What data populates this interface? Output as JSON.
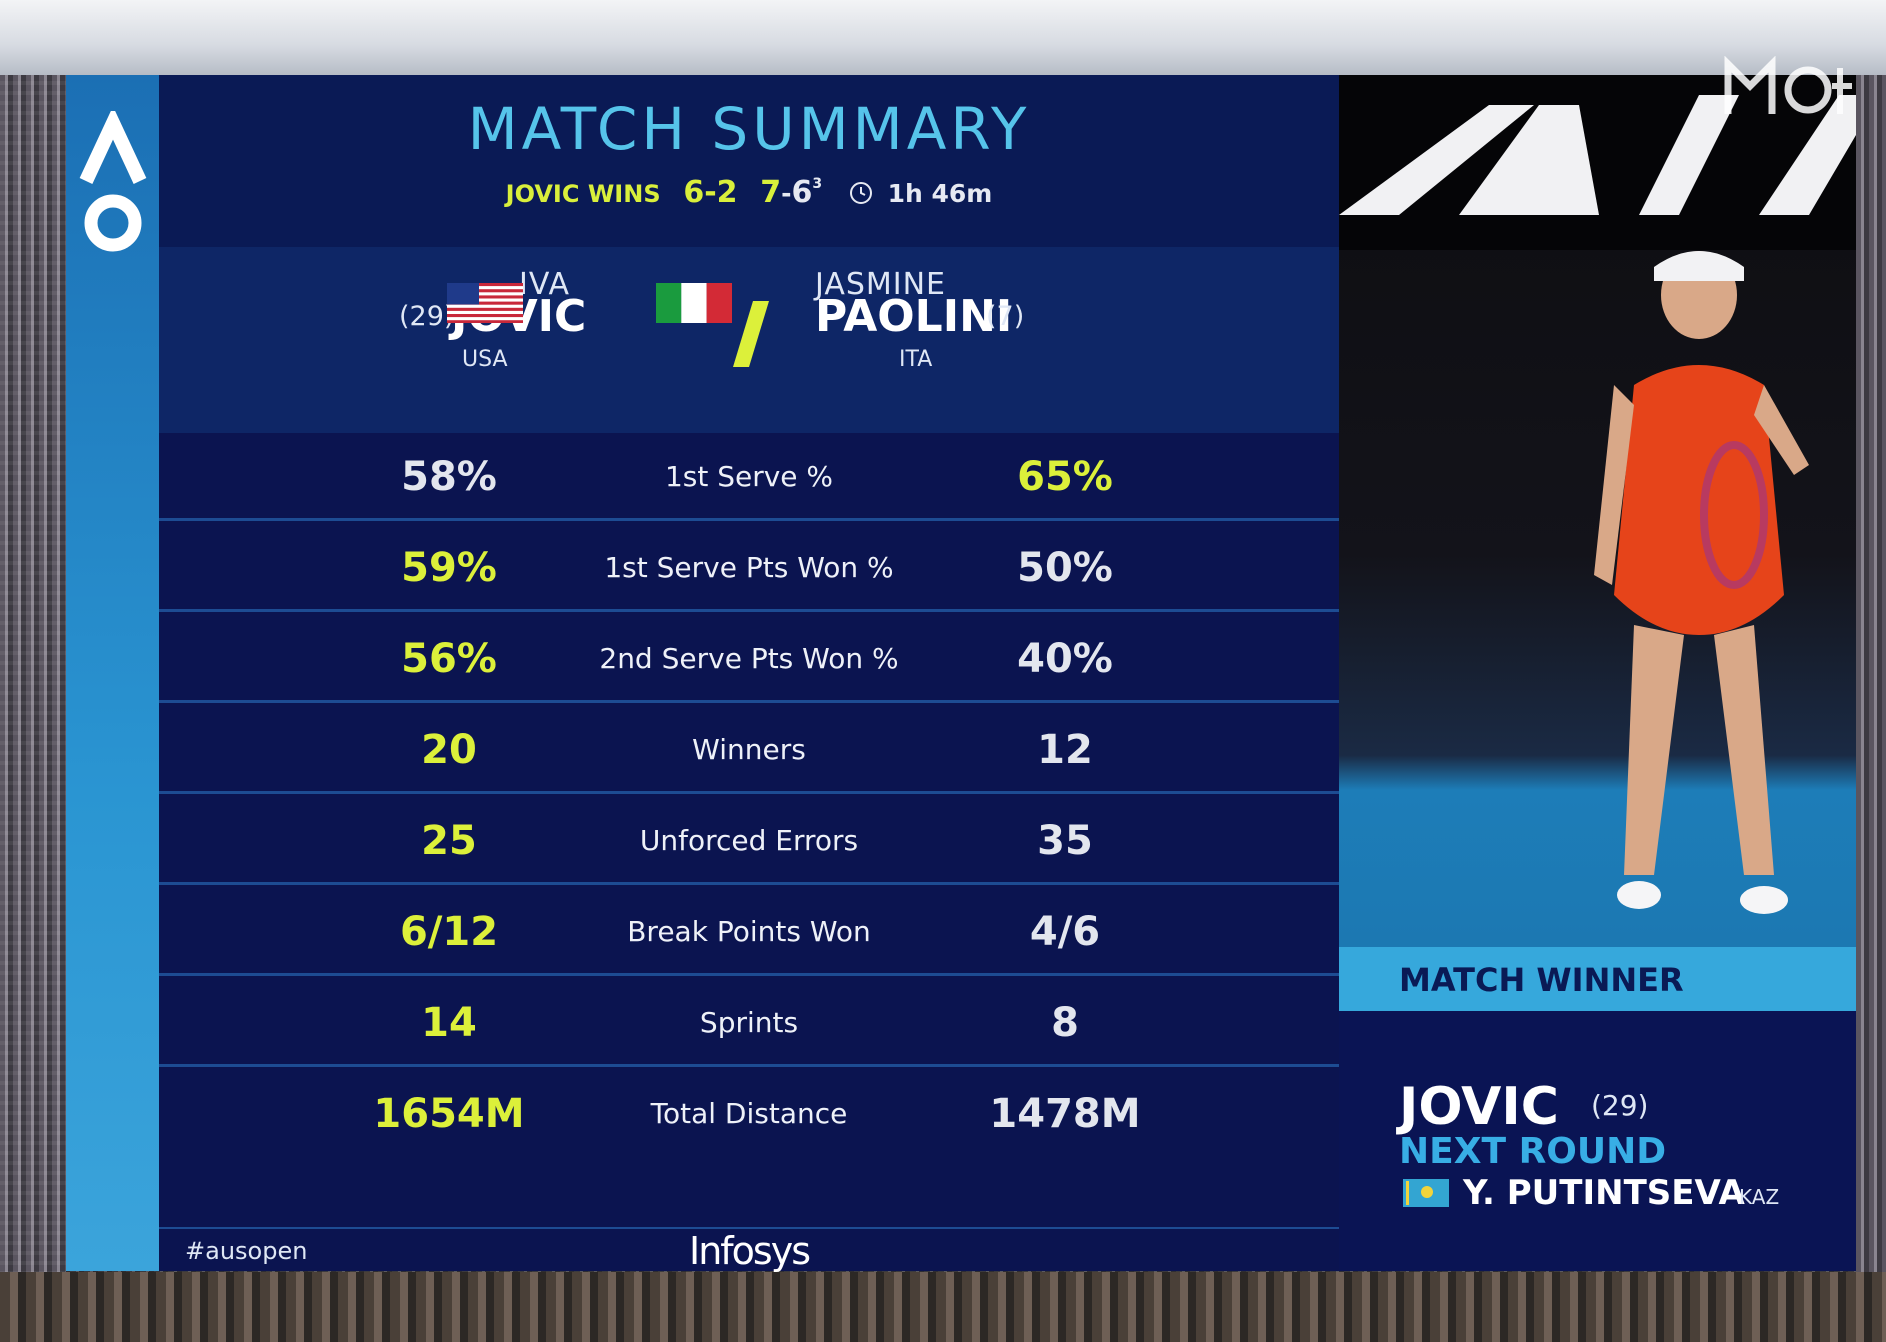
{
  "header": {
    "title": "MATCH SUMMARY",
    "result": "JOVIC WINS",
    "set1": "6-2",
    "set2_a": "7",
    "set2_b": "6",
    "tiebreak": "3",
    "duration": "1h 46m"
  },
  "players": {
    "left": {
      "first": "IVA",
      "last": "JOVIC",
      "seed": "(29)",
      "country": "USA"
    },
    "right": {
      "first": "JASMINE",
      "last": "PAOLINI",
      "seed": "(7)",
      "country": "ITA"
    }
  },
  "stats": [
    {
      "label": "1st Serve %",
      "left": "58%",
      "right": "65%",
      "leader": "right"
    },
    {
      "label": "1st Serve Pts Won %",
      "left": "59%",
      "right": "50%",
      "leader": "left"
    },
    {
      "label": "2nd Serve Pts Won %",
      "left": "56%",
      "right": "40%",
      "leader": "left"
    },
    {
      "label": "Winners",
      "left": "20",
      "right": "12",
      "leader": "left"
    },
    {
      "label": "Unforced Errors",
      "left": "25",
      "right": "35",
      "leader": "left"
    },
    {
      "label": "Break Points Won",
      "left": "6/12",
      "right": "4/6",
      "leader": "left"
    },
    {
      "label": "Sprints",
      "left": "14",
      "right": "8",
      "leader": "left"
    },
    {
      "label": "Total Distance",
      "left": "1654M",
      "right": "1478M",
      "leader": "left"
    }
  ],
  "footer": {
    "hashtag": "#ausopen",
    "sponsor": "Infosys"
  },
  "winner_panel": {
    "band": "MATCH WINNER",
    "name": "JOVIC",
    "seed": "(29)",
    "next_label": "NEXT ROUND",
    "opponent": "Y. PUTINTSEVA",
    "opponent_country": "KAZ"
  },
  "colors": {
    "accent_yellow": "#dcf03a",
    "title_blue": "#56c4ea",
    "panel_navy": "#0b1450",
    "ao_blue": "#2a95d2"
  },
  "icons": [
    "ao-logo-icon",
    "clock-icon",
    "usa-flag-icon",
    "italy-flag-icon",
    "kazakhstan-flag-icon",
    "broadcaster-logo-icon"
  ]
}
